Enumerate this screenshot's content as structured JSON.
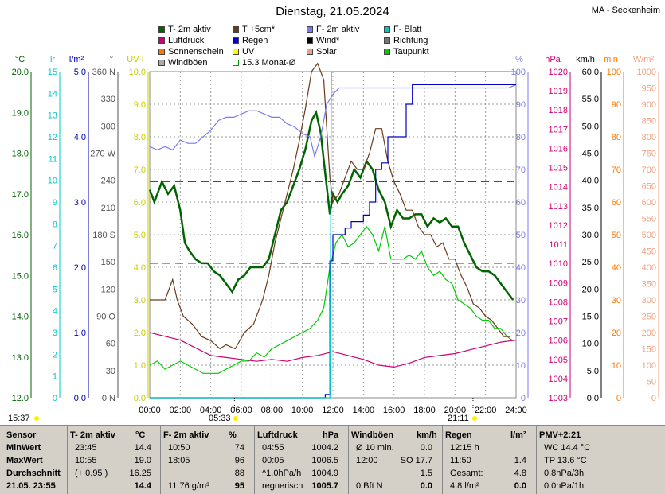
{
  "title": "Dienstag, 21.05.2024",
  "station": "MA - Seckenheim",
  "legend": [
    {
      "label": "T- 2m aktiv",
      "color": "#006400"
    },
    {
      "label": "T +5cm*",
      "color": "#6b3a1a"
    },
    {
      "label": "F- 2m aktiv",
      "color": "#7b7bf0"
    },
    {
      "label": "F- Blatt",
      "color": "#00c8c8"
    },
    {
      "label": "Luftdruck",
      "color": "#cc0077"
    },
    {
      "label": "Regen",
      "color": "#0000cc"
    },
    {
      "label": "Wind*",
      "color": "#000000"
    },
    {
      "label": "Richtung",
      "color": "#777777"
    },
    {
      "label": "Sonnenschein",
      "color": "#ff7700"
    },
    {
      "label": "UV",
      "color": "#ffff00"
    },
    {
      "label": "Solar",
      "color": "#f0a080"
    },
    {
      "label": "Taupunkt",
      "color": "#00cc00"
    },
    {
      "label": "Windböen",
      "color": "#aaaaaa"
    },
    {
      "label": "15.3 Monat-Ø",
      "color": "#ffffff"
    }
  ],
  "chart_data": {
    "type": "line",
    "x_ticks": [
      "00:00",
      "02:00",
      "04:00",
      "06:00",
      "08:00",
      "10:00",
      "12:00",
      "14:00",
      "16:00",
      "18:00",
      "20:00",
      "22:00",
      "24:00"
    ],
    "axes": {
      "temp": {
        "unit": "°C",
        "ticks": [
          "20.0",
          "19.0",
          "18.0",
          "17.0",
          "16.0",
          "15.0",
          "14.0",
          "13.0",
          "12.0"
        ],
        "color": "#006400",
        "range": [
          12,
          20
        ]
      },
      "lr": {
        "unit": "lr",
        "ticks": [
          "15",
          "14",
          "13",
          "12",
          "11",
          "10",
          "9",
          "8",
          "7",
          "6",
          "5",
          "4",
          "3",
          "2",
          "1",
          "0"
        ],
        "color": "#00c8c8"
      },
      "rain": {
        "unit": "l/m²",
        "ticks": [
          "5.0",
          "4.0",
          "3.0",
          "2.0",
          "1.0",
          "0.0"
        ],
        "color": "#0000aa"
      },
      "dir": {
        "unit": "°",
        "ticks": [
          "360 N",
          "330",
          "300",
          "270 W",
          "240",
          "210",
          "180 S",
          "150",
          "120",
          "90 O",
          "60",
          "30",
          "0 N"
        ],
        "color": "#555555"
      },
      "uv": {
        "unit": "UV-I",
        "ticks": [
          "10.0",
          "9.0",
          "8.0",
          "7.0",
          "6.0",
          "5.0",
          "4.0",
          "3.0",
          "2.0",
          "1.0",
          "0.0"
        ],
        "color": "#cccc00"
      },
      "hum": {
        "unit": "%",
        "ticks": [
          "100",
          "90",
          "80",
          "70",
          "60",
          "50",
          "40",
          "30",
          "20",
          "10",
          "0"
        ],
        "color": "#7b7bf0"
      },
      "press": {
        "unit": "hPa",
        "ticks": [
          "1020",
          "1019",
          "1018",
          "1017",
          "1016",
          "1015",
          "1014",
          "1013",
          "1012",
          "1011",
          "1010",
          "1009",
          "1008",
          "1007",
          "1006",
          "1005",
          "1004",
          "1003"
        ],
        "color": "#cc0077",
        "range": [
          1003,
          1020
        ]
      },
      "wind": {
        "unit": "km/h",
        "ticks": [
          "60.0",
          "55.0",
          "50.0",
          "45.0",
          "40.0",
          "35.0",
          "30.0",
          "25.0",
          "20.0",
          "15.0",
          "10.0",
          "5.0",
          "0.0"
        ],
        "color": "#000000"
      },
      "min": {
        "unit": "min",
        "ticks": [
          "100",
          "90",
          "80",
          "70",
          "60",
          "50",
          "40",
          "30",
          "20",
          "10",
          "0"
        ],
        "color": "#ff7700"
      },
      "solar": {
        "unit": "W/m²",
        "ticks": [
          "1000",
          "950",
          "900",
          "850",
          "800",
          "750",
          "700",
          "650",
          "600",
          "550",
          "500",
          "450",
          "400",
          "350",
          "300",
          "250",
          "200",
          "150",
          "100",
          "50",
          "0"
        ],
        "color": "#f0a080"
      }
    },
    "reference_lines": [
      {
        "name": "month_avg_temp",
        "value": 17.3,
        "axis": "temp",
        "color": "#cc0077"
      },
      {
        "name": "month_avg_other",
        "value": 15.3,
        "axis": "temp",
        "color": "#006400"
      }
    ],
    "series": [
      {
        "name": "T- 2m aktiv",
        "color": "#006400",
        "axis": "temp",
        "x": [
          0,
          0.3,
          0.8,
          1.2,
          1.6,
          2.0,
          2.3,
          2.6,
          3.0,
          3.4,
          3.8,
          4.2,
          4.6,
          5.0,
          5.4,
          5.8,
          6.2,
          6.6,
          7.0,
          7.4,
          7.8,
          8.2,
          8.6,
          9.0,
          9.4,
          9.8,
          10.2,
          10.6,
          10.9,
          11.2,
          11.5,
          11.8,
          12.0,
          12.3,
          12.6,
          13.0,
          13.4,
          13.8,
          14.2,
          14.6,
          15.0,
          15.4,
          15.8,
          16.2,
          16.6,
          17.0,
          17.4,
          17.8,
          18.2,
          18.6,
          19.0,
          19.4,
          19.8,
          20.2,
          20.6,
          21.0,
          21.4,
          21.8,
          22.2,
          22.6,
          23.0,
          23.4,
          23.8
        ],
        "values": [
          17.1,
          16.8,
          17.3,
          17.0,
          17.2,
          16.6,
          15.8,
          15.6,
          15.4,
          15.3,
          15.3,
          15.1,
          15.0,
          14.8,
          14.6,
          14.9,
          15.0,
          15.2,
          15.2,
          15.2,
          15.4,
          16.0,
          16.6,
          16.8,
          17.2,
          17.6,
          18.1,
          18.8,
          19.0,
          18.5,
          17.5,
          16.5,
          17.0,
          16.8,
          17.0,
          17.2,
          17.6,
          17.4,
          17.8,
          17.6,
          17.1,
          16.8,
          16.2,
          16.6,
          16.4,
          16.4,
          16.5,
          16.5,
          16.2,
          16.4,
          16.3,
          16.4,
          16.2,
          16.2,
          15.8,
          15.5,
          15.2,
          15.1,
          15.1,
          15.0,
          14.8,
          14.6,
          14.4
        ]
      },
      {
        "name": "T +5cm*",
        "color": "#6b3a1a",
        "axis": "temp",
        "x": [
          0,
          1.0,
          1.5,
          1.8,
          2.2,
          2.8,
          3.4,
          4.0,
          4.6,
          5.0,
          5.6,
          6.2,
          6.8,
          7.4,
          7.8,
          8.2,
          8.6,
          9.0,
          9.4,
          9.8,
          10.2,
          10.6,
          11.0,
          11.4,
          11.6,
          11.8,
          12.0,
          12.4,
          12.8,
          13.2,
          13.6,
          14.0,
          14.4,
          14.8,
          15.2,
          15.6,
          16.0,
          16.4,
          16.8,
          17.2,
          17.6,
          18.0,
          18.4,
          18.8,
          19.2,
          19.6,
          20.0,
          20.4,
          20.8,
          21.2,
          21.6,
          22.0,
          22.4,
          22.8,
          23.2,
          23.6
        ],
        "values": [
          14.4,
          14.4,
          14.9,
          14.4,
          14.0,
          13.8,
          13.5,
          13.4,
          13.2,
          13.3,
          13.2,
          13.6,
          13.8,
          14.4,
          15.0,
          15.8,
          16.4,
          17.0,
          17.6,
          18.3,
          19.1,
          20.0,
          20.2,
          19.8,
          18.6,
          17.4,
          16.8,
          17.0,
          17.4,
          17.8,
          17.6,
          17.6,
          18.0,
          18.6,
          18.6,
          17.8,
          17.3,
          17.0,
          16.6,
          16.6,
          16.2,
          16.0,
          16.0,
          15.7,
          15.8,
          15.4,
          15.4,
          15.0,
          14.7,
          14.3,
          14.2,
          14.0,
          13.9,
          13.7,
          13.5,
          13.5
        ]
      },
      {
        "name": "F- 2m aktiv",
        "color": "#7b7bf0",
        "axis": "hum",
        "x": [
          0,
          0.5,
          1.0,
          1.5,
          2.0,
          2.5,
          3.0,
          3.5,
          4.0,
          4.5,
          5.0,
          5.5,
          6.0,
          6.5,
          7.0,
          7.5,
          8.0,
          8.5,
          9.0,
          9.5,
          10.0,
          10.5,
          10.8,
          11.2,
          11.6,
          12.0,
          12.4,
          12.8,
          13.2,
          13.6,
          14.0,
          14.5,
          15.0,
          15.5,
          16.0,
          16.5,
          17.0,
          17.5,
          18.0,
          18.5,
          19.0,
          19.5,
          20.0,
          20.5,
          21.0,
          21.5,
          22.0,
          22.5,
          23.0,
          23.5,
          24.0
        ],
        "values": [
          77,
          76,
          77,
          76,
          79,
          78,
          78,
          80,
          82,
          85,
          86,
          86,
          87,
          88,
          88,
          87,
          86,
          86,
          84,
          83,
          81,
          80,
          74,
          80,
          90,
          93,
          95,
          95,
          95,
          95,
          95,
          95,
          95,
          95,
          95,
          95,
          95,
          95,
          95,
          95,
          95,
          95,
          95,
          95,
          95,
          95,
          95,
          95,
          95,
          95,
          96
        ]
      },
      {
        "name": "Taupunkt",
        "color": "#00cc00",
        "axis": "temp",
        "x": [
          0,
          0.5,
          1.0,
          1.5,
          2.0,
          2.5,
          3.0,
          3.5,
          4.0,
          4.5,
          5.0,
          5.5,
          6.0,
          6.5,
          7.0,
          7.5,
          8.0,
          8.5,
          9.0,
          9.5,
          10.0,
          10.5,
          11.0,
          11.4,
          11.8,
          12.2,
          12.6,
          13.0,
          13.4,
          13.8,
          14.2,
          14.6,
          15.0,
          15.4,
          15.8,
          16.2,
          16.6,
          17.0,
          17.4,
          17.8,
          18.2,
          18.6,
          19.0,
          19.4,
          19.8,
          20.2,
          20.6,
          21.0,
          21.4,
          21.8,
          22.2,
          22.6,
          23.0,
          23.4,
          23.8
        ],
        "values": [
          12.8,
          12.9,
          12.7,
          12.8,
          12.9,
          12.8,
          12.7,
          12.6,
          12.6,
          12.6,
          12.7,
          12.8,
          12.9,
          12.9,
          13.1,
          13.0,
          13.2,
          13.3,
          13.4,
          13.5,
          13.6,
          13.7,
          13.9,
          14.2,
          15.2,
          15.8,
          16.0,
          15.7,
          15.8,
          16.0,
          16.2,
          16.0,
          15.6,
          16.2,
          15.4,
          15.4,
          15.4,
          15.5,
          15.4,
          15.6,
          15.2,
          15.0,
          15.1,
          14.9,
          14.8,
          14.4,
          14.3,
          14.2,
          14.0,
          13.9,
          13.9,
          13.7,
          13.7,
          13.5,
          13.4
        ]
      },
      {
        "name": "Luftdruck",
        "color": "#cc0077",
        "axis": "press",
        "x": [
          0,
          1,
          2,
          3,
          4,
          5,
          6,
          7,
          8,
          9,
          10,
          11,
          12,
          13,
          14,
          15,
          16,
          17,
          18,
          19,
          20,
          21,
          22,
          23,
          24
        ],
        "values": [
          1006.4,
          1006.2,
          1006.0,
          1005.6,
          1005.2,
          1005.1,
          1005.0,
          1004.9,
          1005.0,
          1004.9,
          1005.1,
          1005.2,
          1005.4,
          1005.2,
          1005.0,
          1004.7,
          1004.6,
          1004.8,
          1005.1,
          1005.2,
          1005.3,
          1005.5,
          1005.7,
          1005.9,
          1006.0
        ]
      },
      {
        "name": "Regen",
        "color": "#0000cc",
        "axis": "rain",
        "x": [
          0,
          11.0,
          11.5,
          11.8,
          12.0,
          12.4,
          12.8,
          13.2,
          13.6,
          14.0,
          14.4,
          14.8,
          15.2,
          15.6,
          16.0,
          16.4,
          16.8,
          17.2,
          17.6,
          18.0,
          24.0
        ],
        "values": [
          0,
          0,
          0.05,
          2.1,
          2.5,
          2.5,
          2.6,
          2.7,
          2.7,
          2.8,
          3.0,
          3.5,
          3.6,
          4.0,
          4.0,
          4.0,
          4.5,
          4.8,
          4.8,
          4.8,
          4.8
        ]
      },
      {
        "name": "F- Blatt",
        "color": "#00c8c8",
        "axis": "lr",
        "x": [
          0,
          11.8,
          11.9,
          24.0
        ],
        "values": [
          0,
          0,
          15,
          15
        ]
      }
    ],
    "xlim": [
      0,
      24
    ]
  },
  "markers": {
    "sunrise": "05:33",
    "sunset": "21:11",
    "now": "15:37"
  },
  "footer": {
    "rows": [
      "Sensor",
      "MinWert",
      "MaxWert",
      "Durchschnitt",
      "21.05. 23:55"
    ],
    "cols": [
      {
        "head": "T- 2m aktiv",
        "unit": "°C",
        "cells": [
          [
            "23:45",
            "14.4"
          ],
          [
            "10:55",
            "19.0"
          ],
          [
            "(+ 0.95 )",
            "16.25"
          ],
          [
            "",
            "14.4"
          ]
        ]
      },
      {
        "head": "F- 2m aktiv",
        "unit": "%",
        "cells": [
          [
            "10:50",
            "74"
          ],
          [
            "18:05",
            "96"
          ],
          [
            "",
            "88"
          ],
          [
            "11.76 g/m³",
            "95"
          ]
        ]
      },
      {
        "head": "Luftdruck",
        "unit": "hPa",
        "cells": [
          [
            "04:55",
            "1004.2"
          ],
          [
            "00:05",
            "1006.5"
          ],
          [
            "^1.0hPa/h",
            "1004.9"
          ],
          [
            "regnerisch",
            "1005.7"
          ]
        ]
      },
      {
        "head": "Windböen",
        "unit": "km/h",
        "cells": [
          [
            "Ø 10 min.",
            "0.0"
          ],
          [
            "12:00",
            "SO 17.7"
          ],
          [
            "",
            "1.5"
          ],
          [
            "0 Bft N",
            "0.0"
          ]
        ]
      },
      {
        "head": "Regen",
        "unit": "l/m²",
        "cells": [
          [
            "12:15 h",
            ""
          ],
          [
            "11:50",
            "1.4"
          ],
          [
            "Gesamt:",
            "4.8"
          ],
          [
            "4.8 l/m²",
            "0.0"
          ]
        ]
      },
      {
        "head": "PMV+2:21",
        "unit": "",
        "cells": [
          [
            "WC 14.4 °C",
            ""
          ],
          [
            "TP 13.6 °C",
            ""
          ],
          [
            "0.8hPa/3h",
            ""
          ],
          [
            "0.0hPa/1h",
            ""
          ]
        ]
      }
    ]
  }
}
